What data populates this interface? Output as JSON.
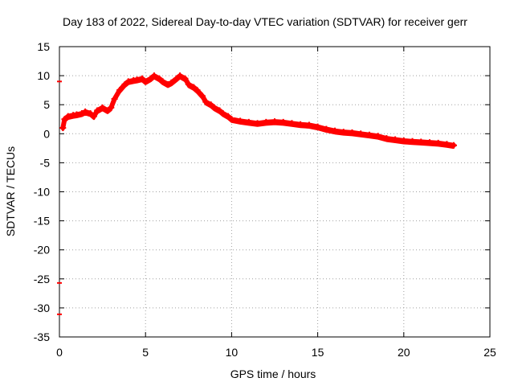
{
  "chart_data": {
    "type": "line",
    "title": "Day 183 of 2022, Sidereal Day-to-day VTEC variation (SDTVAR) for receiver gerr",
    "xlabel": "GPS time / hours",
    "ylabel": "SDTVAR / TECUs",
    "xlim": [
      0,
      25
    ],
    "ylim": [
      -35,
      15
    ],
    "grid": true,
    "x_ticks": [
      0,
      5,
      10,
      15,
      20,
      25
    ],
    "y_ticks": [
      15,
      10,
      5,
      0,
      -5,
      -10,
      -15,
      -20,
      -25,
      -30,
      -35
    ],
    "x_tick_labels": [
      "0",
      "5",
      "10",
      "15",
      "20",
      "25"
    ],
    "y_tick_labels": [
      "15",
      "10",
      "5",
      "0",
      "-5",
      "-10",
      "-15",
      "-20",
      "-25",
      "-30",
      "-35"
    ],
    "series_color": "#ff0000",
    "series": [
      {
        "name": "SDTVAR",
        "x": [
          0.2,
          0.3,
          0.5,
          0.8,
          1.0,
          1.3,
          1.5,
          1.8,
          2.0,
          2.2,
          2.5,
          2.8,
          3.0,
          3.2,
          3.5,
          3.8,
          4.0,
          4.3,
          4.5,
          4.8,
          5.0,
          5.3,
          5.5,
          5.8,
          6.0,
          6.3,
          6.5,
          6.8,
          7.0,
          7.3,
          7.5,
          7.8,
          8.0,
          8.3,
          8.5,
          8.8,
          9.0,
          9.3,
          9.5,
          9.8,
          10.0,
          10.5,
          11.0,
          11.5,
          12.0,
          12.5,
          13.0,
          13.5,
          14.0,
          14.5,
          15.0,
          15.5,
          16.0,
          16.5,
          17.0,
          17.5,
          18.0,
          18.5,
          19.0,
          19.5,
          20.0,
          20.5,
          21.0,
          21.5,
          22.0,
          22.5,
          22.9
        ],
        "y": [
          1.0,
          2.5,
          3.0,
          3.2,
          3.3,
          3.5,
          3.8,
          3.5,
          3.0,
          4.0,
          4.5,
          4.0,
          4.5,
          6.0,
          7.5,
          8.5,
          9.0,
          9.2,
          9.3,
          9.5,
          9.0,
          9.5,
          10.0,
          9.5,
          9.0,
          8.5,
          8.8,
          9.5,
          10.0,
          9.5,
          8.5,
          8.0,
          7.5,
          6.5,
          5.5,
          5.0,
          4.5,
          4.0,
          3.5,
          3.0,
          2.5,
          2.2,
          2.0,
          1.8,
          2.0,
          2.1,
          2.0,
          1.8,
          1.6,
          1.5,
          1.2,
          0.8,
          0.5,
          0.3,
          0.2,
          0.0,
          -0.2,
          -0.4,
          -0.8,
          -1.0,
          -1.2,
          -1.3,
          -1.4,
          -1.5,
          -1.6,
          -1.8,
          -2.0
        ]
      }
    ],
    "outlier_points": [
      {
        "x": 0.0,
        "y": 9.0
      },
      {
        "x": 0.0,
        "y": -25.7
      },
      {
        "x": 0.0,
        "y": -31.1
      }
    ]
  }
}
